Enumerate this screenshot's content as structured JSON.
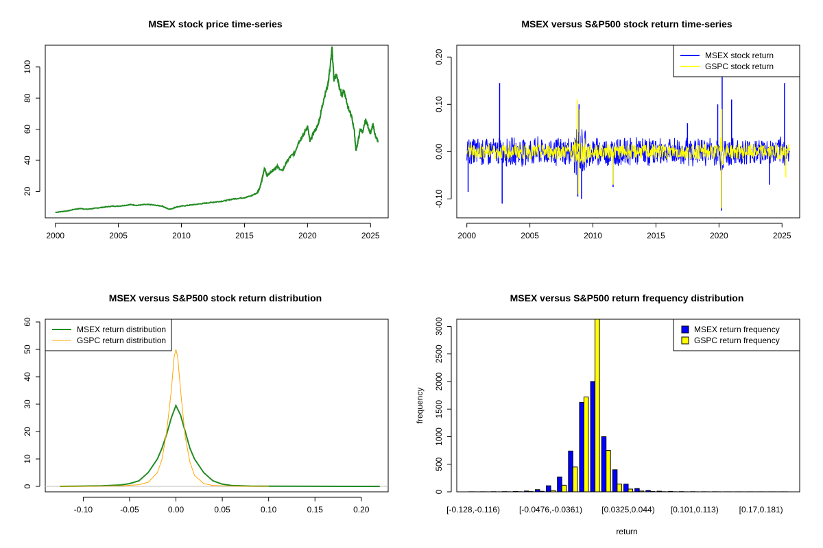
{
  "chart_data": [
    {
      "type": "line",
      "title": "MSEX stock price time-series",
      "xticks": [
        2000,
        2005,
        2010,
        2015,
        2020,
        2025
      ],
      "yticks": [
        20,
        40,
        60,
        80,
        100
      ],
      "xlim": [
        1999.2,
        2026.4
      ],
      "ylim": [
        3,
        114
      ],
      "color": "#228B22",
      "series": [
        {
          "x": [
            2000.0,
            2000.5,
            2001.0,
            2001.5,
            2002.0,
            2002.5,
            2003.0,
            2003.5,
            2004.0,
            2004.5,
            2005.0,
            2005.5,
            2006.0,
            2006.5,
            2007.0,
            2007.5,
            2008.0,
            2008.5,
            2009.0,
            2009.3,
            2009.6,
            2010.0,
            2010.5,
            2011.0,
            2011.5,
            2012.0,
            2012.5,
            2013.0,
            2013.5,
            2014.0,
            2014.5,
            2015.0,
            2015.5,
            2016.0,
            2016.2,
            2016.4,
            2016.6,
            2016.8,
            2017.0,
            2017.3,
            2017.6,
            2018.0,
            2018.3,
            2018.6,
            2019.0,
            2019.3,
            2019.6,
            2020.0,
            2020.2,
            2020.5,
            2020.8,
            2021.0,
            2021.3,
            2021.6,
            2021.8,
            2021.95,
            2022.1,
            2022.3,
            2022.5,
            2022.7,
            2022.9,
            2023.1,
            2023.3,
            2023.5,
            2023.7,
            2023.85,
            2024.0,
            2024.2,
            2024.4,
            2024.6,
            2024.8,
            2025.0,
            2025.2,
            2025.4,
            2025.6
          ],
          "y": [
            6.5,
            7.0,
            7.5,
            8.5,
            9.0,
            8.5,
            9.0,
            9.5,
            10.0,
            10.5,
            10.5,
            11.0,
            11.5,
            11.0,
            11.5,
            11.5,
            11.0,
            10.5,
            8.5,
            9.0,
            10.0,
            10.5,
            11.0,
            11.5,
            12.0,
            12.5,
            13.0,
            13.5,
            14.0,
            15.0,
            15.5,
            16.0,
            17.0,
            19.0,
            22.0,
            28.0,
            35.0,
            30.0,
            32.0,
            34.0,
            36.0,
            33.0,
            38.0,
            42.0,
            45.0,
            52.0,
            55.0,
            62.0,
            52.0,
            58.0,
            62.0,
            68.0,
            80.0,
            88.0,
            100.0,
            112.0,
            92.0,
            95.0,
            88.0,
            82.0,
            85.0,
            78.0,
            72.0,
            68.0,
            60.0,
            46.0,
            52.0,
            60.0,
            58.0,
            66.0,
            62.0,
            57.0,
            63.0,
            55.0,
            52.0
          ]
        }
      ]
    },
    {
      "type": "line",
      "title": "MSEX versus S&P500 stock return time-series",
      "xticks": [
        2000,
        2005,
        2010,
        2015,
        2020,
        2025
      ],
      "yticks": [
        -0.1,
        0.0,
        0.1,
        0.2
      ],
      "ytick_labels": [
        "-0.10",
        "0.00",
        "0.10",
        "0.20"
      ],
      "xlim": [
        1999.2,
        2026.4
      ],
      "ylim": [
        -0.14,
        0.225
      ],
      "legend": [
        "MSEX stock return",
        "GSPC stock return"
      ],
      "legend_position": "top-right",
      "series": [
        {
          "name": "MSEX stock return",
          "color": "#0000FF",
          "spikes": [
            [
              2000.1,
              -0.085
            ],
            [
              2002.6,
              0.145
            ],
            [
              2002.8,
              -0.11
            ],
            [
              2008.8,
              -0.095
            ],
            [
              2008.9,
              0.1
            ],
            [
              2009.1,
              -0.1
            ],
            [
              2011.6,
              -0.075
            ],
            [
              2019.9,
              0.1
            ],
            [
              2020.2,
              -0.125
            ],
            [
              2020.25,
              0.16
            ],
            [
              2021.0,
              0.11
            ],
            [
              2025.2,
              0.145
            ],
            [
              2024.0,
              -0.07
            ],
            [
              2017.5,
              0.06
            ]
          ]
        },
        {
          "name": "GSPC stock return",
          "color": "#FFFF00",
          "spikes": [
            [
              2008.75,
              0.11
            ],
            [
              2008.85,
              -0.09
            ],
            [
              2008.95,
              0.09
            ],
            [
              2011.6,
              -0.07
            ],
            [
              2020.18,
              -0.12
            ],
            [
              2020.22,
              0.09
            ],
            [
              2025.3,
              -0.055
            ]
          ]
        }
      ]
    },
    {
      "type": "line",
      "title": "MSEX versus S&P500 stock return distribution",
      "xticks": [
        -0.1,
        -0.05,
        0.0,
        0.05,
        0.1,
        0.15,
        0.2
      ],
      "xtick_labels": [
        "-0.10",
        "-0.05",
        "0.00",
        "0.05",
        "0.10",
        "0.15",
        "0.20"
      ],
      "yticks": [
        0,
        10,
        20,
        30,
        40,
        50,
        60
      ],
      "xlim": [
        -0.141,
        0.229
      ],
      "ylim": [
        -2,
        61
      ],
      "legend": [
        "MSEX return distribution",
        "GSPC return distribution"
      ],
      "legend_position": "top-left",
      "series": [
        {
          "name": "MSEX return distribution",
          "color": "#228B22",
          "x": [
            -0.125,
            -0.1,
            -0.08,
            -0.06,
            -0.05,
            -0.04,
            -0.03,
            -0.02,
            -0.015,
            -0.01,
            -0.005,
            0.0,
            0.005,
            0.01,
            0.015,
            0.02,
            0.03,
            0.04,
            0.05,
            0.06,
            0.08,
            0.1,
            0.15,
            0.22
          ],
          "y": [
            0,
            0.1,
            0.2,
            0.5,
            1.0,
            2.0,
            5.0,
            10.0,
            14.0,
            19.0,
            25.0,
            29.5,
            26.0,
            20.0,
            14.0,
            10.0,
            5.0,
            2.0,
            0.8,
            0.3,
            0.1,
            0.05,
            0.02,
            0
          ]
        },
        {
          "name": "GSPC return distribution",
          "color": "#FFA500",
          "x": [
            -0.125,
            -0.08,
            -0.06,
            -0.04,
            -0.03,
            -0.02,
            -0.015,
            -0.01,
            -0.005,
            -0.002,
            0.0,
            0.002,
            0.005,
            0.01,
            0.015,
            0.02,
            0.03,
            0.04,
            0.06,
            0.1
          ],
          "y": [
            0,
            0.1,
            0.2,
            0.6,
            1.5,
            5.0,
            10.0,
            20.0,
            35.0,
            47.0,
            50.0,
            47.0,
            35.0,
            18.0,
            9.0,
            4.0,
            1.0,
            0.3,
            0.1,
            0
          ]
        }
      ]
    },
    {
      "type": "bar",
      "title": "MSEX versus S&P500 return frequency distribution",
      "xlabel": "return",
      "ylabel": "frequency",
      "yticks": [
        0,
        500,
        1000,
        1500,
        2000,
        2500,
        3000
      ],
      "ylim": [
        0,
        3130
      ],
      "xtick_labels": [
        "[-0.128,-0.116)",
        "[-0.0476,-0.0361)",
        "[0.0325,0.044)",
        "[0.101,0.113)",
        "[0.17,0.181)"
      ],
      "xtick_label_bins": [
        0,
        7,
        14,
        20,
        26
      ],
      "legend": [
        "MSEX return frequency",
        "GSPC return frequency"
      ],
      "legend_position": "top-right",
      "series": [
        {
          "name": "MSEX return frequency",
          "color": "#0000FF",
          "values": [
            2,
            2,
            3,
            4,
            6,
            15,
            40,
            110,
            270,
            740,
            1620,
            2000,
            1000,
            400,
            140,
            60,
            25,
            12,
            8,
            4,
            3,
            2,
            2,
            1,
            1,
            1,
            1,
            1,
            1
          ]
        },
        {
          "name": "GSPC return frequency",
          "color": "#FFFF00",
          "values": [
            1,
            1,
            1,
            2,
            3,
            5,
            10,
            25,
            120,
            450,
            1720,
            3130,
            750,
            140,
            50,
            15,
            6,
            3,
            2,
            1,
            1,
            1,
            1,
            1,
            1,
            1,
            1,
            1,
            1
          ]
        }
      ]
    }
  ]
}
